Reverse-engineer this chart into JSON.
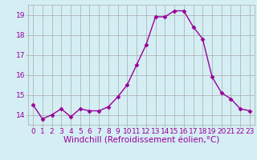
{
  "x": [
    0,
    1,
    2,
    3,
    4,
    5,
    6,
    7,
    8,
    9,
    10,
    11,
    12,
    13,
    14,
    15,
    16,
    17,
    18,
    19,
    20,
    21,
    22,
    23
  ],
  "y": [
    14.5,
    13.8,
    14.0,
    14.3,
    13.9,
    14.3,
    14.2,
    14.2,
    14.4,
    14.9,
    15.5,
    16.5,
    17.5,
    18.9,
    18.9,
    19.2,
    19.2,
    18.4,
    17.8,
    15.9,
    15.1,
    14.8,
    14.3,
    14.2
  ],
  "line_color": "#990099",
  "marker": "D",
  "marker_size": 2.5,
  "bg_color": "#d4eef4",
  "grid_color": "#aaaaaa",
  "xlabel": "Windchill (Refroidissement éolien,°C)",
  "xlim": [
    -0.5,
    23.5
  ],
  "ylim": [
    13.5,
    19.5
  ],
  "yticks": [
    14,
    15,
    16,
    17,
    18,
    19
  ],
  "xticks": [
    0,
    1,
    2,
    3,
    4,
    5,
    6,
    7,
    8,
    9,
    10,
    11,
    12,
    13,
    14,
    15,
    16,
    17,
    18,
    19,
    20,
    21,
    22,
    23
  ],
  "tick_label_fontsize": 6.5,
  "xlabel_fontsize": 7.5,
  "line_width": 1.0
}
